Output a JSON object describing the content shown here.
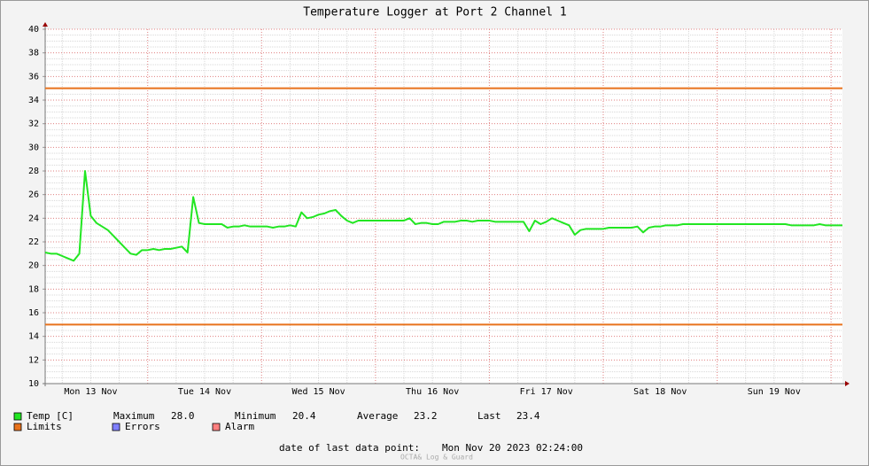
{
  "chart_data": {
    "type": "line",
    "title": "Temperature Logger at Port 2 Channel 1",
    "categories": [
      null,
      null,
      null,
      null,
      null,
      null,
      null,
      null,
      "Mon 13 Nov",
      null,
      null,
      null,
      null,
      null,
      null,
      null,
      null,
      null,
      null,
      null,
      null,
      null,
      null,
      null,
      null,
      null,
      null,
      null,
      "Tue 14 Nov",
      null,
      null,
      null,
      null,
      null,
      null,
      null,
      null,
      null,
      null,
      null,
      null,
      null,
      null,
      null,
      null,
      null,
      null,
      null,
      "Wed 15 Nov",
      null,
      null,
      null,
      null,
      null,
      null,
      null,
      null,
      null,
      null,
      null,
      null,
      null,
      null,
      null,
      null,
      null,
      null,
      null,
      "Thu 16 Nov",
      null,
      null,
      null,
      null,
      null,
      null,
      null,
      null,
      null,
      null,
      null,
      null,
      null,
      null,
      null,
      null,
      null,
      null,
      null,
      "Fri 17 Nov",
      null,
      null,
      null,
      null,
      null,
      null,
      null,
      null,
      null,
      null,
      null,
      null,
      null,
      null,
      null,
      null,
      null,
      null,
      null,
      "Sat 18 Nov",
      null,
      null,
      null,
      null,
      null,
      null,
      null,
      null,
      null,
      null,
      null,
      null,
      null,
      null,
      null,
      null,
      null,
      null,
      null,
      "Sun 19 Nov",
      null,
      null,
      null,
      null,
      null,
      null,
      null,
      null,
      null,
      null,
      null,
      null
    ],
    "series": [
      {
        "name": "Temp [C]",
        "color": "#22e622",
        "values": [
          21.1,
          21.0,
          21.0,
          20.8,
          20.6,
          20.4,
          21.0,
          28.0,
          24.2,
          23.6,
          23.3,
          23.0,
          22.5,
          22.0,
          21.5,
          21.0,
          20.9,
          21.3,
          21.3,
          21.4,
          21.3,
          21.4,
          21.4,
          21.5,
          21.6,
          21.1,
          25.8,
          23.6,
          23.5,
          23.5,
          23.5,
          23.5,
          23.2,
          23.3,
          23.3,
          23.4,
          23.3,
          23.3,
          23.3,
          23.3,
          23.2,
          23.3,
          23.3,
          23.4,
          23.3,
          24.5,
          24.0,
          24.1,
          24.3,
          24.4,
          24.6,
          24.7,
          24.2,
          23.8,
          23.6,
          23.8,
          23.8,
          23.8,
          23.8,
          23.8,
          23.8,
          23.8,
          23.8,
          23.8,
          24.0,
          23.5,
          23.6,
          23.6,
          23.5,
          23.5,
          23.7,
          23.7,
          23.7,
          23.8,
          23.8,
          23.7,
          23.8,
          23.8,
          23.8,
          23.7,
          23.7,
          23.7,
          23.7,
          23.7,
          23.7,
          22.9,
          23.8,
          23.5,
          23.7,
          24.0,
          23.8,
          23.6,
          23.4,
          22.6,
          23.0,
          23.1,
          23.1,
          23.1,
          23.1,
          23.2,
          23.2,
          23.2,
          23.2,
          23.2,
          23.3,
          22.8,
          23.2,
          23.3,
          23.3,
          23.4,
          23.4,
          23.4,
          23.5,
          23.5,
          23.5,
          23.5,
          23.5,
          23.5,
          23.5,
          23.5,
          23.5,
          23.5,
          23.5,
          23.5,
          23.5,
          23.5,
          23.5,
          23.5,
          23.5,
          23.5,
          23.5,
          23.4,
          23.4,
          23.4,
          23.4,
          23.4,
          23.5,
          23.4,
          23.4,
          23.4,
          23.4
        ]
      }
    ],
    "limits": {
      "name": "Limits",
      "color": "#e8721c",
      "values": [
        35,
        15
      ]
    },
    "legend_extra": [
      {
        "name": "Errors",
        "color": "#7f7fff"
      },
      {
        "name": "Alarm",
        "color": "#ff7f7f"
      }
    ],
    "stats": [
      {
        "name": "Maximum",
        "value": 28.0,
        "label": "28.0"
      },
      {
        "name": "Minimum",
        "value": 20.4,
        "label": "20.4"
      },
      {
        "name": "Average",
        "value": 23.2,
        "label": "23.2"
      },
      {
        "name": "Last",
        "value": 23.4,
        "label": "23.4"
      }
    ],
    "footer_label": "date of last data point:",
    "footer_date": "Mon Nov 20 2023 02:24:00",
    "watermark": "OCTA& Log & Guard",
    "ylim": [
      10,
      40
    ],
    "yticks": [
      10,
      12,
      14,
      16,
      18,
      20,
      22,
      24,
      26,
      28,
      30,
      32,
      34,
      36,
      38,
      40
    ],
    "grid": true
  }
}
